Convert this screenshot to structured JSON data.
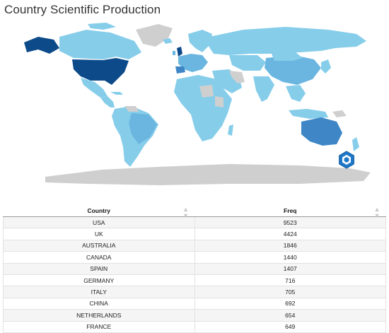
{
  "page": {
    "title": "Country Scientific Production"
  },
  "map": {
    "palette": {
      "no_data": "#cfcfcf",
      "lightest": "#c4e3f4",
      "light": "#86cdea",
      "mid": "#6ab6e1",
      "medium_dark": "#3e86c6",
      "dark": "#215fa6",
      "darkest": "#0c4a8a"
    },
    "logo_icon": "bibliometrix-hexagon-icon"
  },
  "table": {
    "columns": [
      {
        "label": "Country",
        "sort_icon": "sort-arrows-icon"
      },
      {
        "label": "Freq",
        "sort_icon": "sort-arrows-icon"
      }
    ],
    "rows": [
      {
        "country": "USA",
        "freq": "9523"
      },
      {
        "country": "UK",
        "freq": "4424"
      },
      {
        "country": "AUSTRALIA",
        "freq": "1846"
      },
      {
        "country": "CANADA",
        "freq": "1440"
      },
      {
        "country": "SPAIN",
        "freq": "1407"
      },
      {
        "country": "GERMANY",
        "freq": "716"
      },
      {
        "country": "ITALY",
        "freq": "705"
      },
      {
        "country": "CHINA",
        "freq": "692"
      },
      {
        "country": "NETHERLANDS",
        "freq": "654"
      },
      {
        "country": "FRANCE",
        "freq": "649"
      }
    ]
  }
}
